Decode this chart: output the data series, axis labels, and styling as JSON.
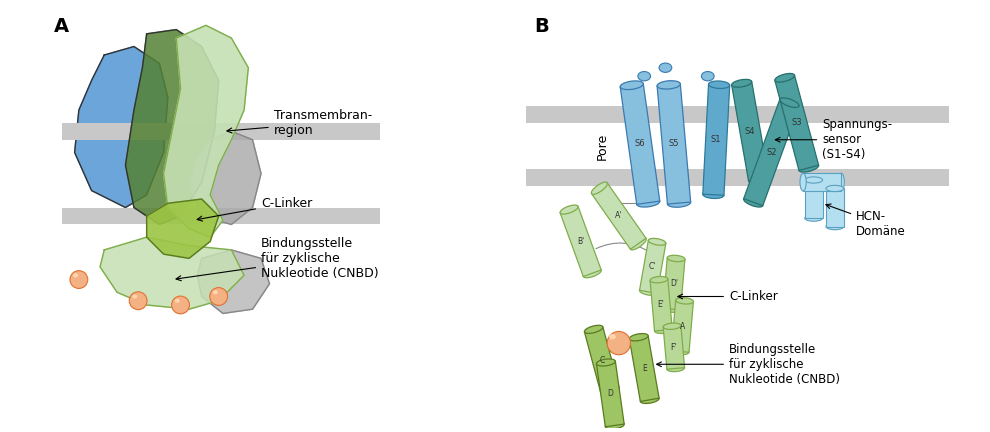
{
  "bg_color": "#ffffff",
  "membrane_color": "#c8c8c8",
  "blue_color": "#5b9bd5",
  "green_color": "#70ad47",
  "lime_color": "#c5e0b3",
  "teal_color": "#4bacc6",
  "orange_color": "#f4b183",
  "gray_color": "#a6a6a6",
  "dark_green": "#375623",
  "mid_green": "#548235",
  "yellow_green": "#e2efda",
  "label_A": "A",
  "label_B": "B",
  "ann_transmembran": "Transmembran-\nregion",
  "ann_clinker_A": "C-Linker",
  "ann_binding_A": "Bindungsstelle\nfür zyklische\nNukleotide (CNBD)",
  "ann_pore": "Pore",
  "ann_spannungssensor": "Spannungs-\nsensor\n(S1-S4)",
  "ann_hcn": "HCN-\nDomäne",
  "ann_clinker_B": "C-Linker",
  "ann_binding_B": "Bindungsstelle\nfür zyklische\nNukleotide (CNBD)",
  "s_labels": [
    "S6",
    "S5",
    "S1",
    "S4",
    "S2",
    "S3"
  ],
  "helix_labels": [
    "A'",
    "B'",
    "C'",
    "D'",
    "E'",
    "A",
    "F'",
    "C",
    "E",
    "D"
  ]
}
